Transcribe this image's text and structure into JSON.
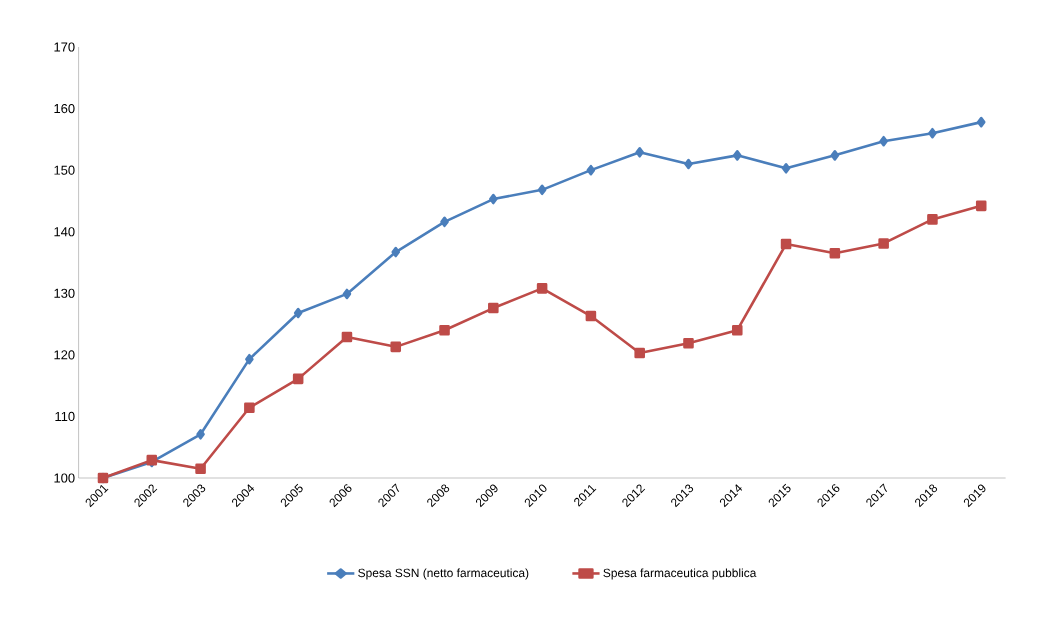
{
  "chart_data": {
    "type": "line",
    "categories": [
      "2001",
      "2002",
      "2003",
      "2004",
      "2005",
      "2006",
      "2007",
      "2008",
      "2009",
      "2010",
      "2011",
      "2012",
      "2013",
      "2014",
      "2015",
      "2016",
      "2017",
      "2018",
      "2019"
    ],
    "series": [
      {
        "name": "Spesa SSN (netto farmaceutica)",
        "color": "#4a7ebb",
        "marker": "diamond",
        "values": [
          100,
          102.6,
          107.1,
          119.3,
          126.8,
          129.9,
          136.7,
          141.6,
          145.3,
          146.8,
          150,
          152.9,
          151,
          152.4,
          150.3,
          152.4,
          154.7,
          156,
          157.8
        ]
      },
      {
        "name": "Spesa farmaceutica pubblica",
        "color": "#be4b48",
        "marker": "square",
        "values": [
          100,
          102.9,
          101.5,
          111.4,
          116.1,
          122.9,
          121.3,
          124,
          127.6,
          130.8,
          126.3,
          120.3,
          121.9,
          124,
          138,
          136.5,
          138.1,
          142,
          144.2
        ]
      }
    ],
    "ylim": [
      100,
      170
    ],
    "yticks": [
      100,
      110,
      120,
      130,
      140,
      150,
      160,
      170
    ],
    "grid": false,
    "legend": "bottom",
    "line_style": "solid"
  }
}
